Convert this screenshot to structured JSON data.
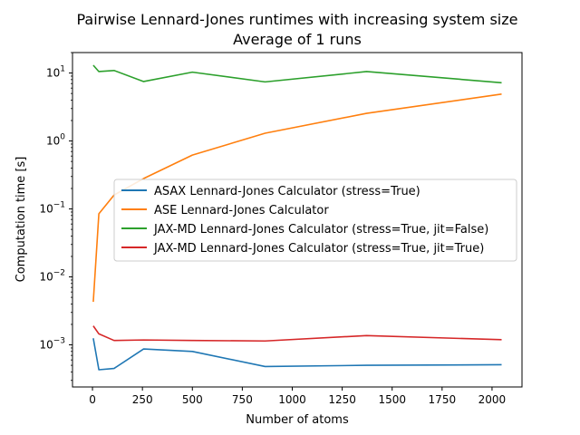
{
  "chart_data": {
    "type": "line",
    "title": "Pairwise Lennard-Jones runtimes with increasing system size",
    "subtitle": "Average of 1 runs",
    "xlabel": "Number of atoms",
    "ylabel": "Computation time [s]",
    "xlim": [
      -100,
      2150
    ],
    "ylim": [
      0.00024,
      20
    ],
    "yscale": "log",
    "xticks": [
      {
        "value": 0,
        "label": "0"
      },
      {
        "value": 250,
        "label": "250"
      },
      {
        "value": 500,
        "label": "500"
      },
      {
        "value": 750,
        "label": "750"
      },
      {
        "value": 1000,
        "label": "1000"
      },
      {
        "value": 1250,
        "label": "1250"
      },
      {
        "value": 1500,
        "label": "1500"
      },
      {
        "value": 1750,
        "label": "1750"
      },
      {
        "value": 2000,
        "label": "2000"
      }
    ],
    "yticks": [
      {
        "value": 0.001,
        "base": "10",
        "exp": "−3"
      },
      {
        "value": 0.01,
        "base": "10",
        "exp": "−2"
      },
      {
        "value": 0.1,
        "base": "10",
        "exp": "−1"
      },
      {
        "value": 1,
        "base": "10",
        "exp": "0"
      },
      {
        "value": 10,
        "base": "10",
        "exp": "1"
      }
    ],
    "grid": false,
    "legend_position": "center-right",
    "series": [
      {
        "name": "ASAX Lennard-Jones Calculator (stress=True)",
        "color": "#1f77b4",
        "x": [
          4,
          32,
          108,
          256,
          500,
          864,
          1372,
          2048
        ],
        "y": [
          0.00125,
          0.00043,
          0.00045,
          0.00087,
          0.0008,
          0.00048,
          0.0005,
          0.00051
        ]
      },
      {
        "name": "ASE Lennard-Jones Calculator",
        "color": "#ff7f0e",
        "x": [
          4,
          32,
          108,
          256,
          500,
          864,
          1372,
          2048
        ],
        "y": [
          0.0043,
          0.085,
          0.16,
          0.28,
          0.62,
          1.3,
          2.55,
          4.9
        ]
      },
      {
        "name": "JAX-MD Lennard-Jones Calculator (stress=True, jit=False)",
        "color": "#2ca02c",
        "x": [
          4,
          32,
          108,
          256,
          500,
          864,
          1372,
          2048
        ],
        "y": [
          13.0,
          10.5,
          10.9,
          7.5,
          10.3,
          7.4,
          10.5,
          7.2
        ]
      },
      {
        "name": "JAX-MD Lennard-Jones Calculator (stress=True, jit=True)",
        "color": "#d62728",
        "x": [
          4,
          32,
          108,
          256,
          500,
          864,
          1372,
          2048
        ],
        "y": [
          0.0019,
          0.00145,
          0.00116,
          0.00118,
          0.00116,
          0.00114,
          0.00137,
          0.00119
        ]
      }
    ]
  }
}
